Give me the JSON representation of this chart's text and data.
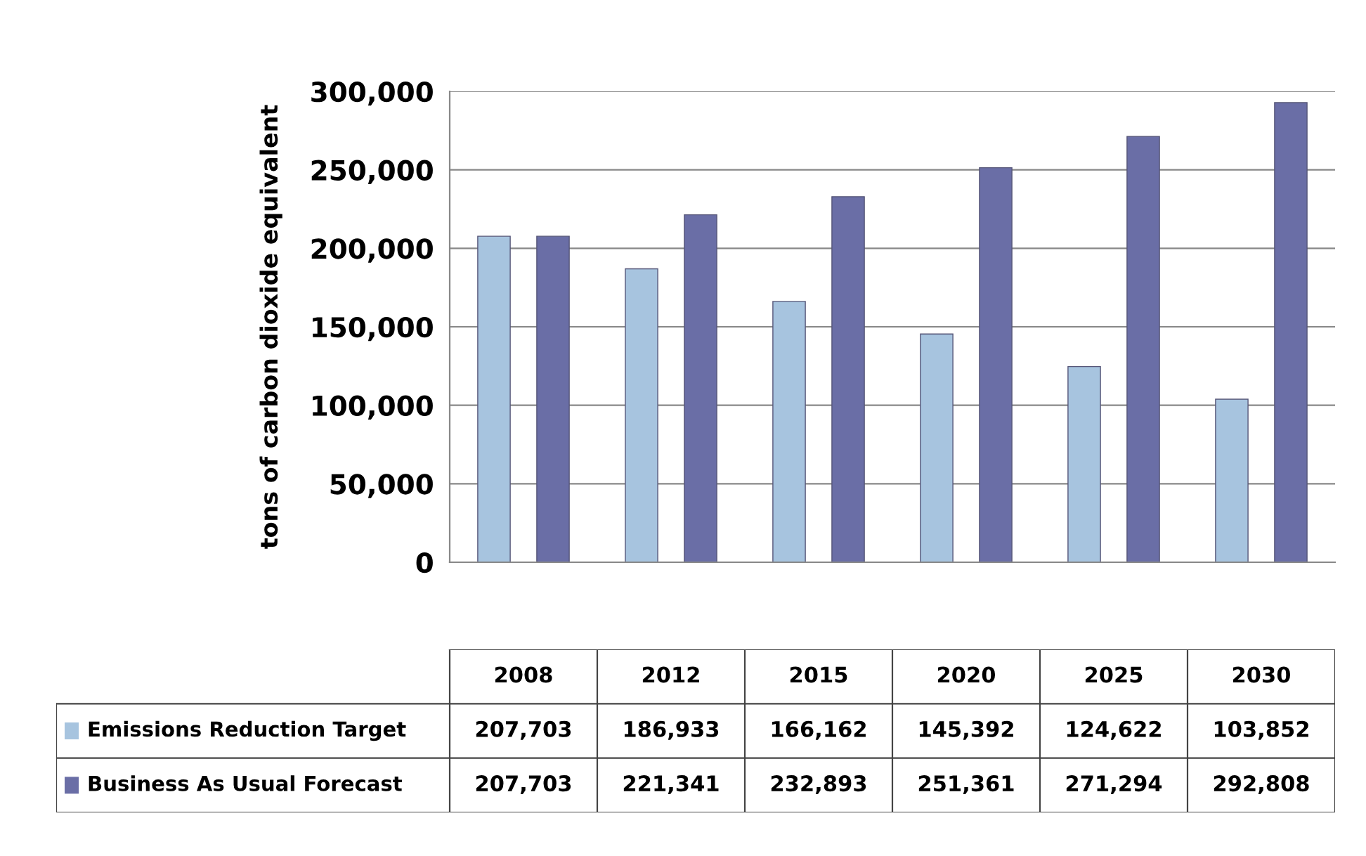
{
  "chart_data": {
    "type": "bar",
    "ylabel": "tons of carbon dioxide equivalent",
    "categories": [
      "2008",
      "2012",
      "2015",
      "2020",
      "2025",
      "2030"
    ],
    "series": [
      {
        "name": "Emissions Reduction Target",
        "color": "#a7c4df",
        "values": [
          207703,
          186933,
          166162,
          145392,
          124622,
          103852
        ],
        "value_labels": [
          "207,703",
          "186,933",
          "166,162",
          "145,392",
          "124,622",
          "103,852"
        ]
      },
      {
        "name": "Business As Usual Forecast",
        "color": "#6a6ea6",
        "values": [
          207703,
          221341,
          232893,
          251361,
          271294,
          292808
        ],
        "value_labels": [
          "207,703",
          "221,341",
          "232,893",
          "251,361",
          "271,294",
          "292,808"
        ]
      }
    ],
    "ylim": [
      0,
      300000
    ],
    "yticks": [
      {
        "value": 0,
        "label": "0"
      },
      {
        "value": 50000,
        "label": "50,000"
      },
      {
        "value": 100000,
        "label": "100,000"
      },
      {
        "value": 150000,
        "label": "150,000"
      },
      {
        "value": 200000,
        "label": "200,000"
      },
      {
        "value": 250000,
        "label": "250,000"
      },
      {
        "value": 300000,
        "label": "300,000"
      }
    ],
    "grid": "y",
    "legend": "bottom"
  }
}
